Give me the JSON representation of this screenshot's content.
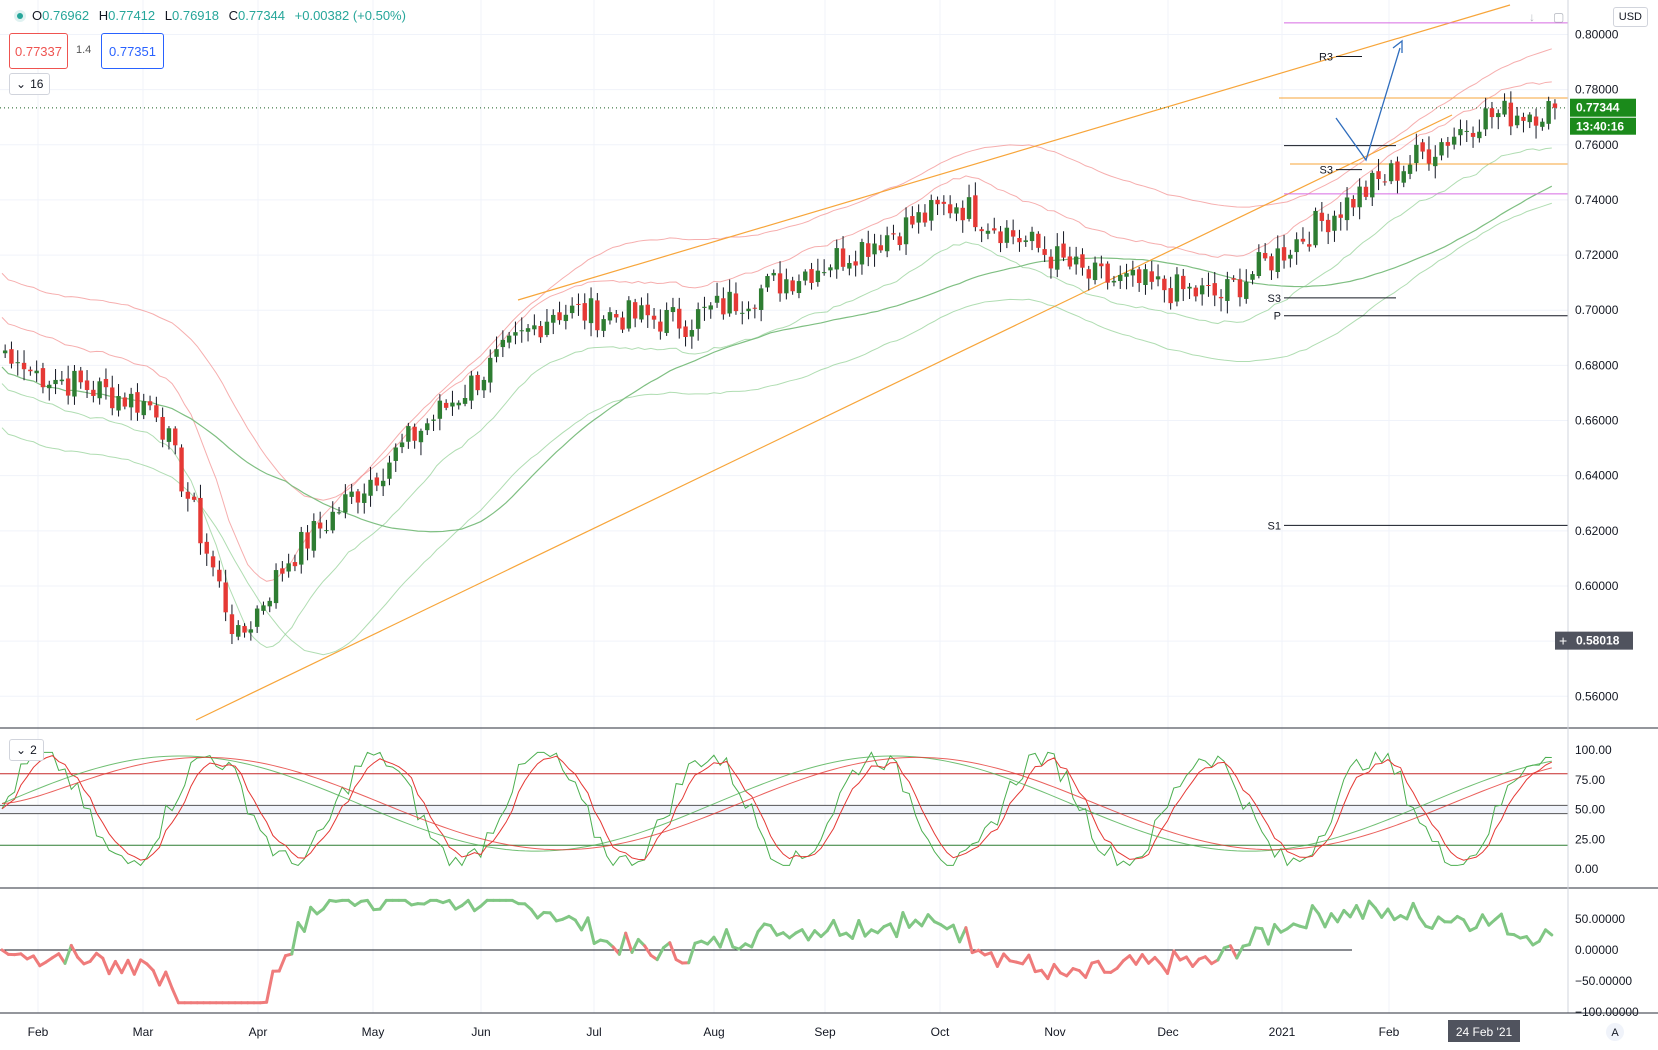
{
  "header": {
    "open_label": "O",
    "open": "0.76962",
    "high_label": "H",
    "high": "0.77412",
    "low_label": "L",
    "low": "0.76918",
    "close_label": "C",
    "close": "0.77344",
    "change": "+0.00382 (+0.50%)",
    "sell_price": "0.77337",
    "spread": "1.4",
    "buy_price": "0.77351",
    "interval_chip": "16",
    "currency": "USD"
  },
  "colors": {
    "up": "#26a69a",
    "down": "#ef5350",
    "channel": "#f7a53a",
    "pivot_magenta": "#d66be3",
    "arrow": "#2f6dbd",
    "bb_red": "#f28b8b",
    "bb_green": "#8fcf92"
  },
  "price_axis": {
    "ticks": [
      "0.80000",
      "0.78000",
      "0.76000",
      "0.74000",
      "0.72000",
      "0.70000",
      "0.68000",
      "0.66000",
      "0.64000",
      "0.62000",
      "0.60000",
      "0.58000",
      "0.56000"
    ],
    "last_price": "0.77344",
    "countdown": "13:40:16",
    "crosshair_price": "0.58018"
  },
  "time_axis": {
    "labels": [
      "Feb",
      "Mar",
      "Apr",
      "May",
      "Jun",
      "Jul",
      "Aug",
      "Sep",
      "Oct",
      "Nov",
      "Dec",
      "2021",
      "Feb"
    ],
    "crosshair_date": "24 Feb '21",
    "scale_button": "A"
  },
  "pivots": [
    {
      "label": "R3",
      "value": 0.792
    },
    {
      "label": "S3",
      "value": 0.751
    },
    {
      "label": "S3",
      "value": 0.7045
    },
    {
      "label": "P",
      "value": 0.698
    },
    {
      "label": "S1",
      "value": 0.622
    }
  ],
  "osc1": {
    "chip": "2",
    "ticks": [
      "100.00",
      "75.00",
      "50.00",
      "25.00",
      "0.00"
    ]
  },
  "osc2": {
    "ticks": [
      "50.00000",
      "0.00000",
      "−50.00000",
      "−100.00000"
    ]
  },
  "chart_data": {
    "type": "candlestick",
    "y_range": [
      0.5485,
      0.8125
    ],
    "osc1_range": [
      0,
      100
    ],
    "osc2_range": [
      -100,
      100
    ],
    "anchors": [
      {
        "date": "Feb",
        "bar": 4,
        "close": 0.678
      },
      {
        "date": "Mar",
        "bar": 24,
        "close": 0.665
      },
      {
        "date": "Mar-low",
        "bar": 37,
        "close": 0.58
      },
      {
        "date": "Apr",
        "bar": 45,
        "close": 0.61
      },
      {
        "date": "May",
        "bar": 66,
        "close": 0.657
      },
      {
        "date": "Jun",
        "bar": 87,
        "close": 0.7
      },
      {
        "date": "Jul",
        "bar": 108,
        "close": 0.696
      },
      {
        "date": "Aug",
        "bar": 131,
        "close": 0.718
      },
      {
        "date": "Sep",
        "bar": 151,
        "close": 0.739
      },
      {
        "date": "Oct",
        "bar": 172,
        "close": 0.712
      },
      {
        "date": "Nov",
        "bar": 193,
        "close": 0.705
      },
      {
        "date": "Dec",
        "bar": 213,
        "close": 0.739
      },
      {
        "date": "2021",
        "bar": 234,
        "close": 0.77
      },
      {
        "date": "last",
        "bar": 246,
        "close": 0.7734
      }
    ]
  }
}
